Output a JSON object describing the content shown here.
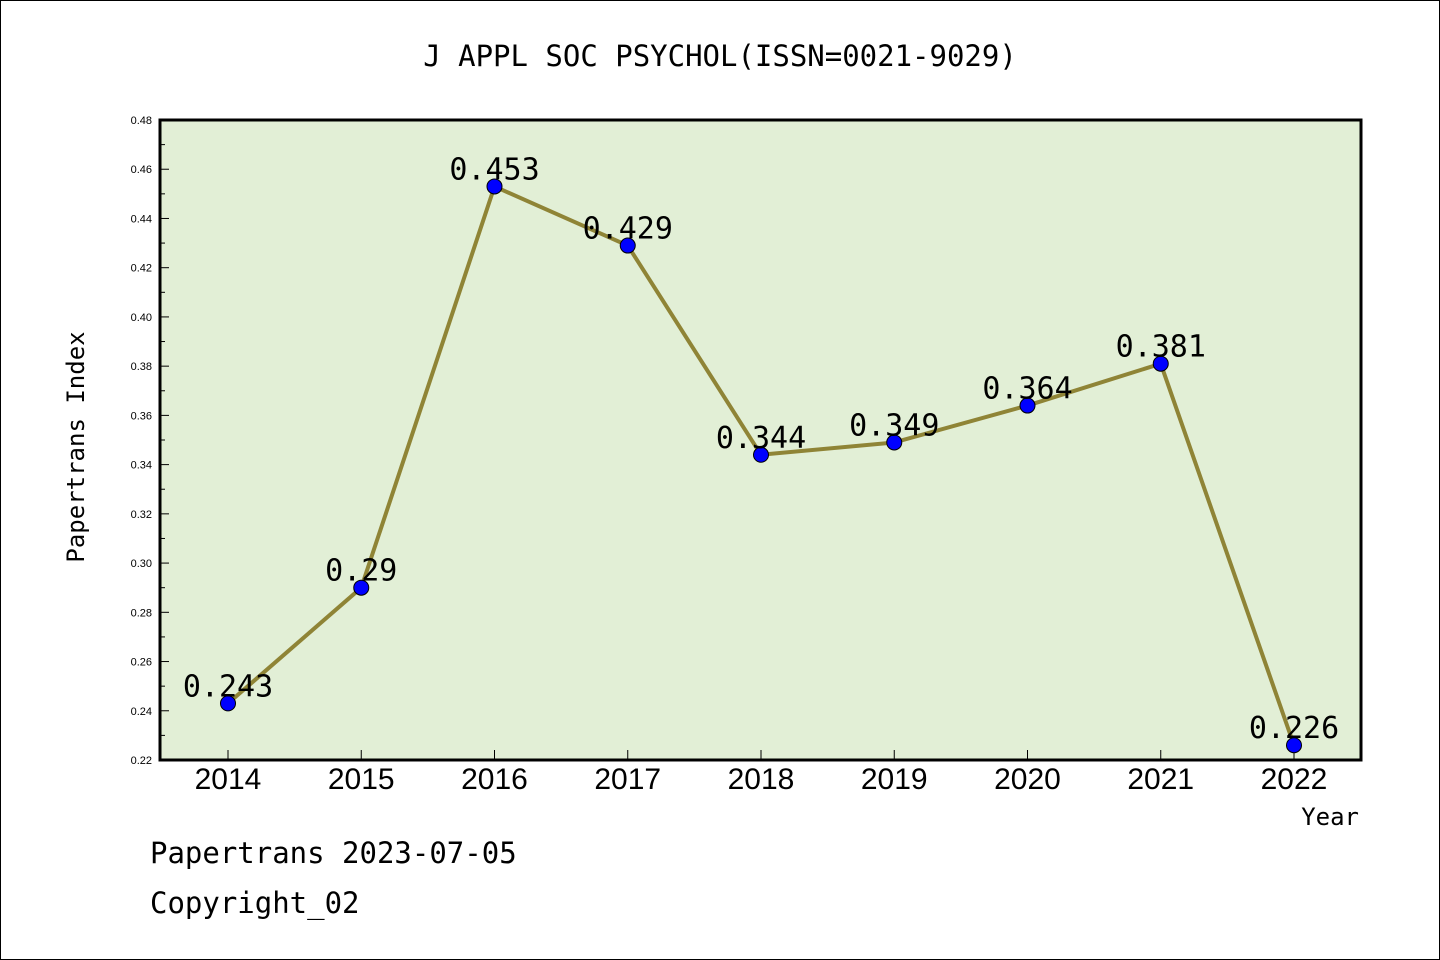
{
  "colors": {
    "plot_background": "#e2efd6",
    "line": "#8f8436",
    "marker": "#0000ff",
    "border": "#000000"
  },
  "footer": {
    "line1": "Papertrans 2023-07-05",
    "line2": "Copyright_02"
  },
  "chart_data": {
    "type": "line",
    "title": "J APPL SOC PSYCHOL(ISSN=0021-9029)",
    "xlabel": "Year",
    "ylabel": "Papertrans Index",
    "ylim": [
      0.22,
      0.48
    ],
    "yticks": [
      0.22,
      0.24,
      0.26,
      0.28,
      0.3,
      0.32,
      0.34,
      0.36,
      0.38,
      0.4,
      0.42,
      0.44,
      0.46,
      0.48
    ],
    "ytick_labels": [
      "0.22",
      "0.24",
      "0.26",
      "0.28",
      "0.30",
      "0.32",
      "0.34",
      "0.36",
      "0.38",
      "0.40",
      "0.42",
      "0.44",
      "0.46",
      "0.48"
    ],
    "grid": false,
    "categories": [
      "2014",
      "2015",
      "2016",
      "2017",
      "2018",
      "2019",
      "2020",
      "2021",
      "2022"
    ],
    "values": [
      0.243,
      0.29,
      0.453,
      0.429,
      0.344,
      0.349,
      0.364,
      0.381,
      0.226
    ],
    "data_labels": [
      "0.243",
      "0.29",
      "0.453",
      "0.429",
      "0.344",
      "0.349",
      "0.364",
      "0.381",
      "0.226"
    ]
  }
}
